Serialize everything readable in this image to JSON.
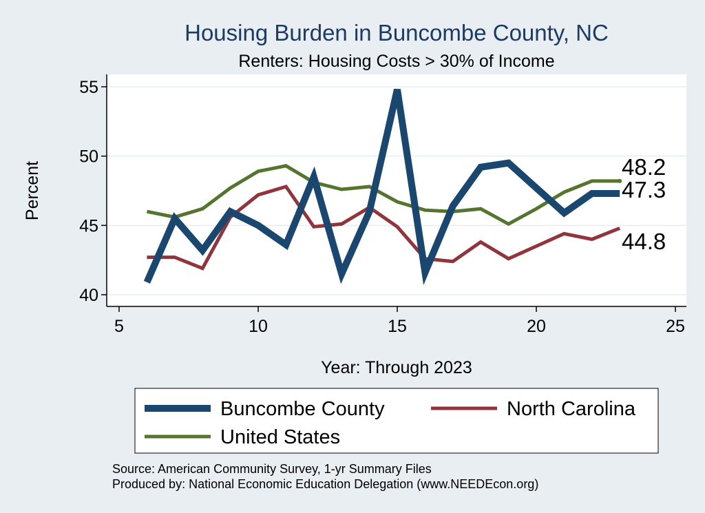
{
  "chart_data": {
    "type": "line",
    "title": "Housing Burden in Buncombe County, NC",
    "subtitle": "Renters: Housing Costs > 30% of Income",
    "xlabel": "Year: Through 2023",
    "ylabel": "Percent",
    "xlim": [
      5,
      25
    ],
    "ylim": [
      40,
      55
    ],
    "xticks": [
      5,
      10,
      15,
      20,
      25
    ],
    "yticks": [
      40,
      45,
      50,
      55
    ],
    "grid": true,
    "legend_position": "bottom",
    "series": [
      {
        "name": "Buncombe County",
        "color": "#1a476f",
        "x": [
          6,
          7,
          8,
          9,
          10,
          11,
          12,
          13,
          14,
          15,
          16,
          17,
          18,
          19,
          20,
          21,
          22,
          23
        ],
        "values": [
          40.9,
          45.5,
          43.2,
          46.0,
          45.0,
          43.6,
          48.5,
          41.5,
          46.0,
          54.8,
          41.6,
          46.4,
          49.2,
          49.5,
          47.7,
          45.9,
          47.3,
          47.3
        ],
        "end_label": "47.3"
      },
      {
        "name": "North Carolina",
        "color": "#90353b",
        "x": [
          6,
          7,
          8,
          9,
          10,
          11,
          12,
          13,
          14,
          15,
          16,
          17,
          18,
          19,
          20,
          21,
          22,
          23
        ],
        "values": [
          42.7,
          42.7,
          41.9,
          45.6,
          47.2,
          47.8,
          44.9,
          45.1,
          46.3,
          44.9,
          42.6,
          42.4,
          43.8,
          42.6,
          43.5,
          44.4,
          44.0,
          44.8
        ],
        "end_label": "44.8"
      },
      {
        "name": "United States",
        "color": "#55752f",
        "x": [
          6,
          7,
          8,
          9,
          10,
          11,
          12,
          13,
          14,
          15,
          16,
          17,
          18,
          19,
          20,
          21,
          22,
          23
        ],
        "values": [
          46.0,
          45.6,
          46.2,
          47.7,
          48.9,
          49.3,
          48.1,
          47.6,
          47.8,
          46.7,
          46.1,
          46.0,
          46.2,
          45.1,
          46.2,
          47.4,
          48.2,
          48.2
        ],
        "end_label": "48.2"
      }
    ],
    "source_lines": [
      "Source: American Community Survey, 1-yr Summary Files",
      "Produced by: National Economic Education Delegation (www.NEEDEcon.org)"
    ]
  }
}
